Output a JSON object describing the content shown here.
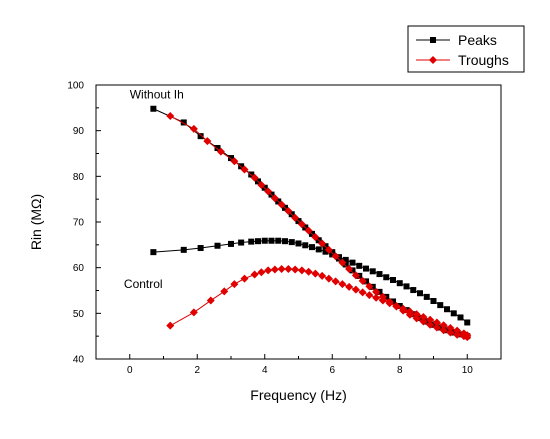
{
  "chart_data": {
    "type": "line",
    "title": "",
    "xlabel": "Frequency (Hz)",
    "ylabel": "Rin (MΩ)",
    "xlim": [
      -1,
      11
    ],
    "ylim": [
      40,
      100
    ],
    "xticks": [
      0,
      2,
      4,
      6,
      8,
      10
    ],
    "yticks": [
      40,
      50,
      60,
      70,
      80,
      90,
      100
    ],
    "grid": false,
    "legend_position": "top-right",
    "annotations": [
      {
        "text": "Without Ih",
        "x": 0.8,
        "y": 97
      },
      {
        "text": "Control",
        "x": 0.4,
        "y": 55.5
      }
    ],
    "series": [
      {
        "name": "Peaks",
        "color": "#000000",
        "marker": "square",
        "groups": [
          {
            "x": [
              0.7,
              1.6,
              2.1,
              2.6,
              3.0,
              3.3,
              3.6,
              3.8,
              4.0,
              4.2,
              4.4,
              4.6,
              4.8,
              5.0,
              5.2,
              5.4,
              5.6,
              5.8,
              6.0,
              6.2,
              6.4,
              6.6,
              6.8,
              7.0,
              7.2,
              7.4,
              7.6,
              7.8,
              8.0,
              8.2,
              8.4,
              8.6,
              8.8,
              9.0,
              9.2,
              9.4,
              9.6,
              9.8,
              10.0
            ],
            "y": [
              63.4,
              63.9,
              64.3,
              64.8,
              65.2,
              65.5,
              65.7,
              65.8,
              65.9,
              65.9,
              65.9,
              65.8,
              65.6,
              65.3,
              64.9,
              64.5,
              64.0,
              63.5,
              62.9,
              62.3,
              61.7,
              61.1,
              60.4,
              59.8,
              59.2,
              58.6,
              57.9,
              57.3,
              56.6,
              55.9,
              55.1,
              54.4,
              53.6,
              52.7,
              51.8,
              50.9,
              50.0,
              49.1,
              48.0
            ]
          },
          {
            "x": [
              0.7,
              1.6,
              2.1,
              2.6,
              3.0,
              3.3,
              3.6,
              3.8,
              4.0,
              4.2,
              4.4,
              4.6,
              4.8,
              5.0,
              5.2,
              5.4,
              5.6,
              5.8,
              6.0,
              6.2,
              6.4,
              6.6,
              6.8,
              7.0,
              7.2,
              7.4,
              7.6,
              7.8,
              8.0,
              8.2,
              8.4,
              8.6,
              8.8,
              9.0,
              9.2,
              9.4,
              9.6,
              9.8,
              10.0
            ],
            "y": [
              94.8,
              91.8,
              88.8,
              86.2,
              84.0,
              82.2,
              80.4,
              78.9,
              77.5,
              76.0,
              74.5,
              73.1,
              71.7,
              70.2,
              68.8,
              67.4,
              66.0,
              64.7,
              63.4,
              62.0,
              60.7,
              59.4,
              58.2,
              57.0,
              55.8,
              54.7,
              53.6,
              52.6,
              51.6,
              50.7,
              49.8,
              49.0,
              48.2,
              47.5,
              46.9,
              46.3,
              45.8,
              45.4,
              45.0
            ]
          }
        ]
      },
      {
        "name": "Troughs",
        "color": "#e00000",
        "marker": "diamond",
        "groups": [
          {
            "x": [
              1.2,
              1.9,
              2.4,
              2.8,
              3.1,
              3.4,
              3.7,
              3.9,
              4.1,
              4.3,
              4.5,
              4.7,
              4.9,
              5.1,
              5.3,
              5.5,
              5.7,
              5.9,
              6.1,
              6.3,
              6.5,
              6.7,
              6.9,
              7.1,
              7.3,
              7.5,
              7.7,
              7.9,
              8.1,
              8.3,
              8.5,
              8.7,
              8.9,
              9.1,
              9.3,
              9.5,
              9.7,
              9.9,
              10.0
            ],
            "y": [
              47.3,
              50.2,
              52.8,
              54.8,
              56.4,
              57.6,
              58.5,
              59.0,
              59.4,
              59.6,
              59.7,
              59.7,
              59.6,
              59.4,
              59.1,
              58.7,
              58.2,
              57.6,
              57.0,
              56.4,
              55.8,
              55.2,
              54.6,
              54.0,
              53.4,
              52.8,
              52.2,
              51.6,
              51.0,
              50.4,
              49.8,
              49.2,
              48.6,
              48.0,
              47.4,
              46.8,
              46.2,
              45.6,
              45.2
            ]
          },
          {
            "x": [
              1.2,
              1.9,
              2.3,
              2.7,
              3.1,
              3.4,
              3.7,
              3.9,
              4.1,
              4.3,
              4.5,
              4.7,
              4.9,
              5.1,
              5.3,
              5.5,
              5.7,
              5.9,
              6.1,
              6.3,
              6.5,
              6.7,
              6.9,
              7.1,
              7.3,
              7.5,
              7.7,
              7.9,
              8.1,
              8.3,
              8.5,
              8.7,
              8.9,
              9.1,
              9.3,
              9.5,
              9.7,
              9.9,
              10.0
            ],
            "y": [
              93.2,
              90.4,
              87.7,
              85.4,
              83.3,
              81.5,
              79.7,
              78.1,
              76.7,
              75.2,
              73.8,
              72.4,
              70.9,
              69.5,
              68.1,
              66.7,
              65.3,
              63.9,
              62.5,
              61.1,
              59.7,
              58.3,
              57.1,
              55.9,
              54.7,
              53.6,
              52.5,
              51.5,
              50.6,
              49.7,
              48.9,
              48.2,
              47.5,
              46.9,
              46.3,
              45.8,
              45.3,
              45.0,
              44.8
            ]
          }
        ]
      }
    ]
  }
}
